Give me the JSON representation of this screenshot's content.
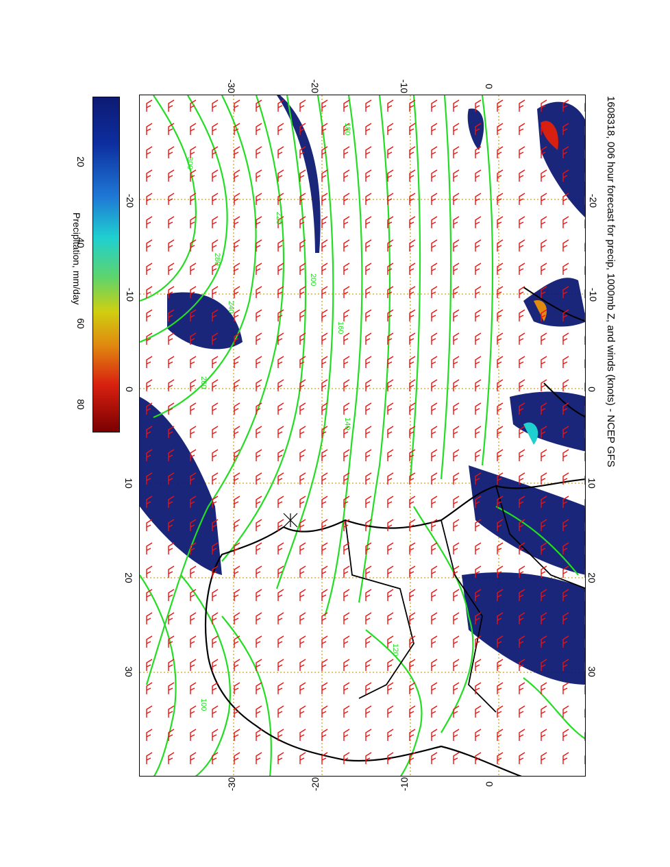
{
  "title": "1608318, 006 hour forecast for precip, 1000mb Z, and winds (knots) - NCEP GFS",
  "colorbar": {
    "label": "Precipitation, mm/day",
    "ticks": [
      "20",
      "40",
      "60",
      "80"
    ]
  },
  "axes": {
    "lon_ticks": [
      "-20",
      "-10",
      "0",
      "10",
      "20",
      "30"
    ],
    "lat_ticks_top": [
      "-30",
      "-20",
      "-10",
      "0"
    ],
    "lat_ticks_bottom": [
      "-30",
      "-20",
      "-10",
      "0"
    ]
  },
  "contour_labels": [
    "300",
    "280",
    "260",
    "240",
    "220",
    "200",
    "180",
    "160",
    "140",
    "120",
    "100"
  ],
  "colors": {
    "contour": "#22dd22",
    "wind_barb": "#ee1111",
    "precip_dark": "#0d1a73",
    "grid": "#d4a017",
    "coast": "#000000"
  }
}
